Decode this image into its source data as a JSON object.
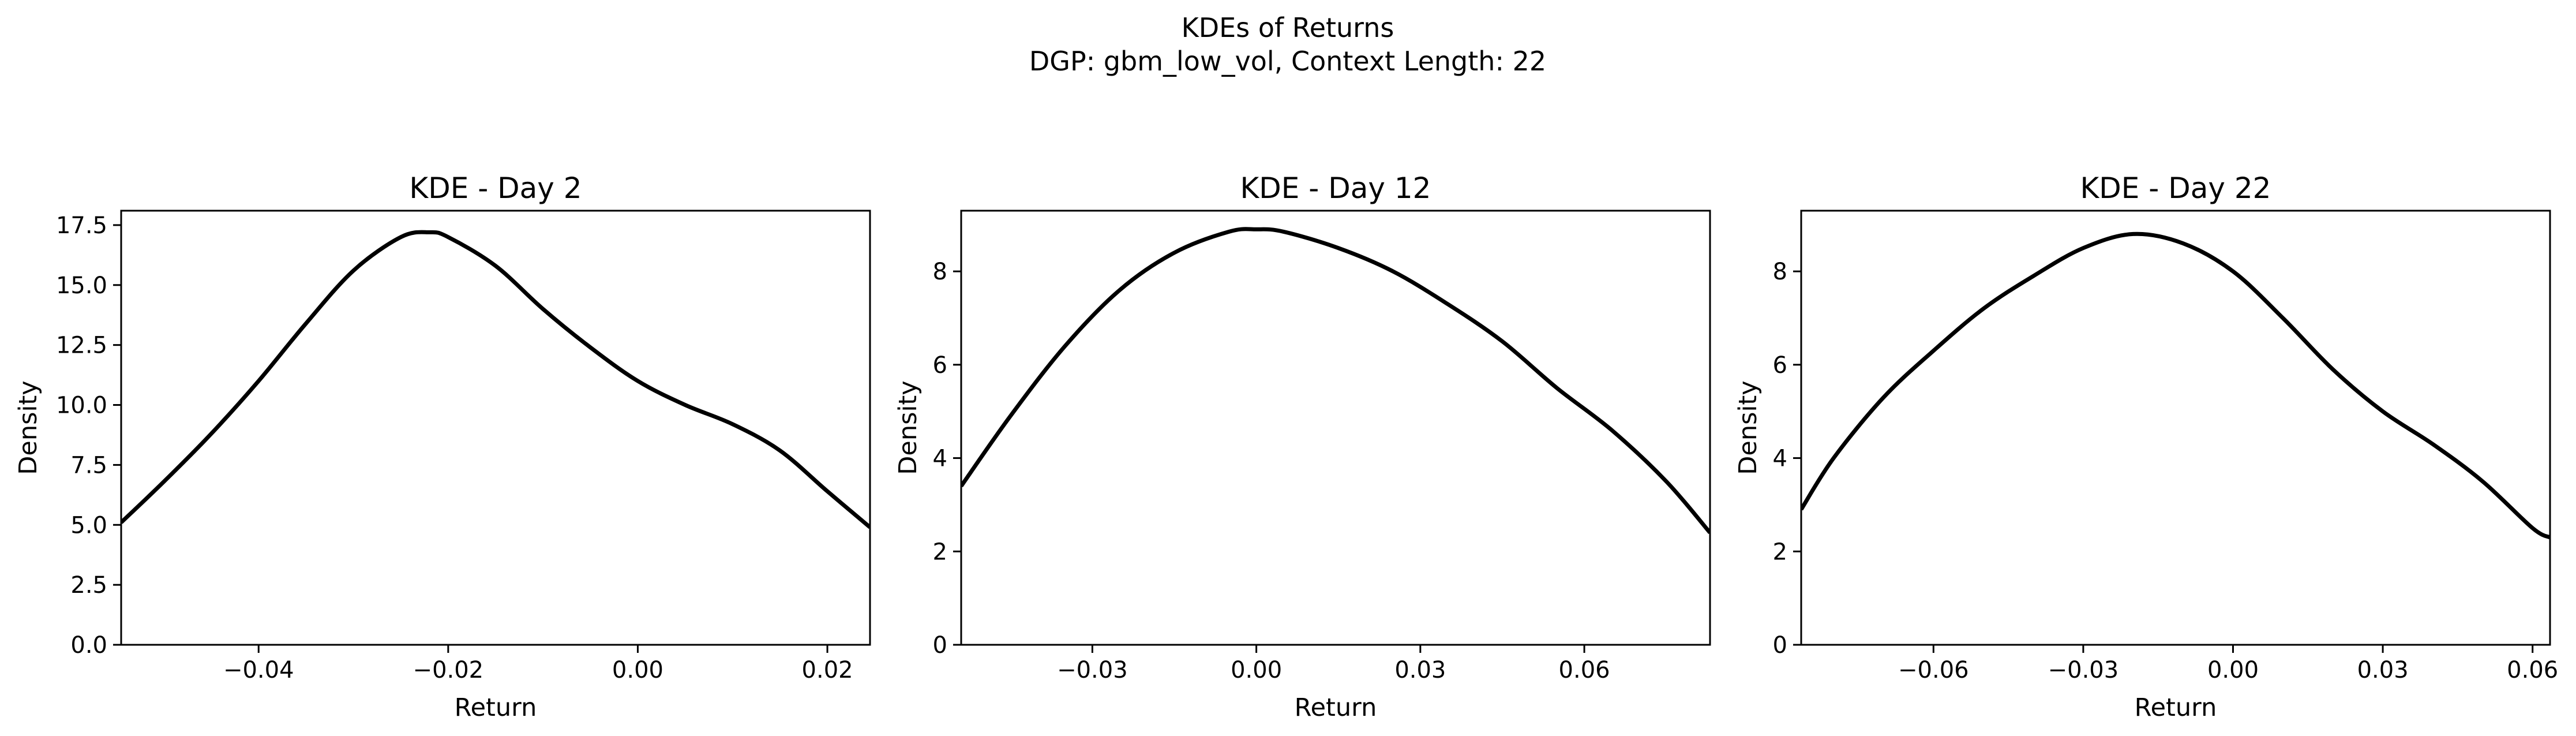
{
  "figure": {
    "title_line1": "KDEs of Returns",
    "title_line2": "DGP: gbm_low_vol, Context Length: 22"
  },
  "chart_data": [
    {
      "type": "line",
      "title": "KDE - Day 2",
      "xlabel": "Return",
      "ylabel": "Density",
      "xlim": [
        -0.0545,
        0.0245
      ],
      "ylim": [
        0,
        18.1
      ],
      "xticks": [
        -0.04,
        -0.02,
        0.0,
        0.02
      ],
      "xtick_labels": [
        "−0.04",
        "−0.02",
        "0.00",
        "0.02"
      ],
      "yticks": [
        0,
        2.5,
        5,
        7.5,
        10,
        12.5,
        15,
        17.5
      ],
      "ytick_labels": [
        "0.0",
        "2.5",
        "5.0",
        "7.5",
        "10.0",
        "12.5",
        "15.0",
        "17.5"
      ],
      "line_color": "#000000",
      "series": [
        {
          "x": [
            -0.0545,
            -0.05,
            -0.045,
            -0.04,
            -0.035,
            -0.03,
            -0.025,
            -0.022,
            -0.02,
            -0.015,
            -0.01,
            -0.005,
            0.0,
            0.005,
            0.01,
            0.015,
            0.02,
            0.0245
          ],
          "y": [
            5.1,
            6.8,
            8.8,
            11.0,
            13.4,
            15.6,
            17.0,
            17.2,
            17.0,
            15.8,
            14.0,
            12.4,
            11.0,
            10.0,
            9.2,
            8.1,
            6.4,
            4.9
          ]
        }
      ]
    },
    {
      "type": "line",
      "title": "KDE - Day 12",
      "xlabel": "Return",
      "ylabel": "Density",
      "xlim": [
        -0.054,
        0.083
      ],
      "ylim": [
        0,
        9.3
      ],
      "xticks": [
        -0.03,
        0.0,
        0.03,
        0.06
      ],
      "xtick_labels": [
        "−0.03",
        "0.00",
        "0.03",
        "0.06"
      ],
      "yticks": [
        0,
        2,
        4,
        6,
        8
      ],
      "ytick_labels": [
        "0",
        "2",
        "4",
        "6",
        "8"
      ],
      "line_color": "#000000",
      "series": [
        {
          "x": [
            -0.054,
            -0.045,
            -0.035,
            -0.025,
            -0.015,
            -0.005,
            0.0,
            0.005,
            0.015,
            0.025,
            0.035,
            0.045,
            0.055,
            0.065,
            0.075,
            0.083
          ],
          "y": [
            3.4,
            4.9,
            6.4,
            7.6,
            8.4,
            8.85,
            8.9,
            8.85,
            8.5,
            8.0,
            7.3,
            6.5,
            5.5,
            4.6,
            3.5,
            2.4
          ]
        }
      ]
    },
    {
      "type": "line",
      "title": "KDE - Day 22",
      "xlabel": "Return",
      "ylabel": "Density",
      "xlim": [
        -0.0865,
        0.0635
      ],
      "ylim": [
        0,
        9.3
      ],
      "xticks": [
        -0.06,
        -0.03,
        0.0,
        0.03,
        0.06
      ],
      "xtick_labels": [
        "−0.06",
        "−0.03",
        "0.00",
        "0.03",
        "0.06"
      ],
      "yticks": [
        0,
        2,
        4,
        6,
        8
      ],
      "ytick_labels": [
        "0",
        "2",
        "4",
        "6",
        "8"
      ],
      "line_color": "#000000",
      "series": [
        {
          "x": [
            -0.0865,
            -0.08,
            -0.07,
            -0.06,
            -0.05,
            -0.04,
            -0.03,
            -0.02,
            -0.01,
            0.0,
            0.01,
            0.02,
            0.03,
            0.04,
            0.05,
            0.06,
            0.0635
          ],
          "y": [
            2.9,
            4.0,
            5.3,
            6.3,
            7.2,
            7.9,
            8.5,
            8.8,
            8.6,
            8.0,
            7.0,
            5.9,
            5.0,
            4.3,
            3.5,
            2.5,
            2.3
          ]
        }
      ]
    }
  ]
}
